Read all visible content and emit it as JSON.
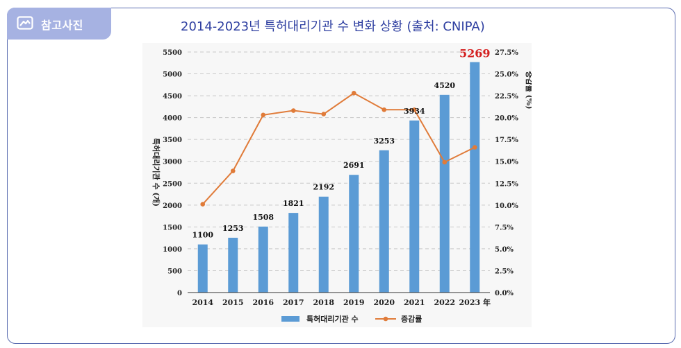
{
  "tag": {
    "label": "참고사진",
    "icon": "image-icon"
  },
  "title": "2014-2023년 특허대리기관 수 변화 상황 (출처: CNIPA)",
  "colors": {
    "bar": "#5b9bd5",
    "line": "#e07b39",
    "highlight": "#d42020",
    "frame": "#5a6cb0",
    "tag": "#a6b2e2",
    "title": "#2d3ea0"
  },
  "chart_data": {
    "type": "bar",
    "categories": [
      "2014",
      "2015",
      "2016",
      "2017",
      "2018",
      "2019",
      "2020",
      "2021",
      "2022",
      "2023 年"
    ],
    "series": [
      {
        "name": "특허대리기관 수",
        "type": "bar",
        "axis": "left",
        "values": [
          1100,
          1253,
          1508,
          1821,
          2192,
          2691,
          3253,
          3934,
          4520,
          5269
        ]
      },
      {
        "name": "증감률",
        "type": "line",
        "axis": "right",
        "values": [
          10.1,
          13.9,
          20.3,
          20.8,
          20.4,
          22.8,
          20.9,
          20.9,
          14.9,
          16.6
        ]
      }
    ],
    "data_labels": [
      "1100",
      "1253",
      "1508",
      "1821",
      "2192",
      "2691",
      "3253",
      "3934",
      "4520",
      "5269"
    ],
    "highlight_index": 9,
    "ylabel": "특허대리기관 수 (개)",
    "y2label": "증감률 (%)",
    "ylim": [
      0,
      5500
    ],
    "yticks": [
      0,
      500,
      1000,
      1500,
      2000,
      2500,
      3000,
      3500,
      4000,
      4500,
      5000,
      5500
    ],
    "y2lim": [
      0,
      27.5
    ],
    "y2ticks": [
      "0.0%",
      "2.5%",
      "5.0%",
      "7.5%",
      "10.0%",
      "12.5%",
      "15.0%",
      "17.5%",
      "20.0%",
      "22.5%",
      "25.0%",
      "27.5%"
    ],
    "grid": true,
    "legend_position": "bottom"
  }
}
